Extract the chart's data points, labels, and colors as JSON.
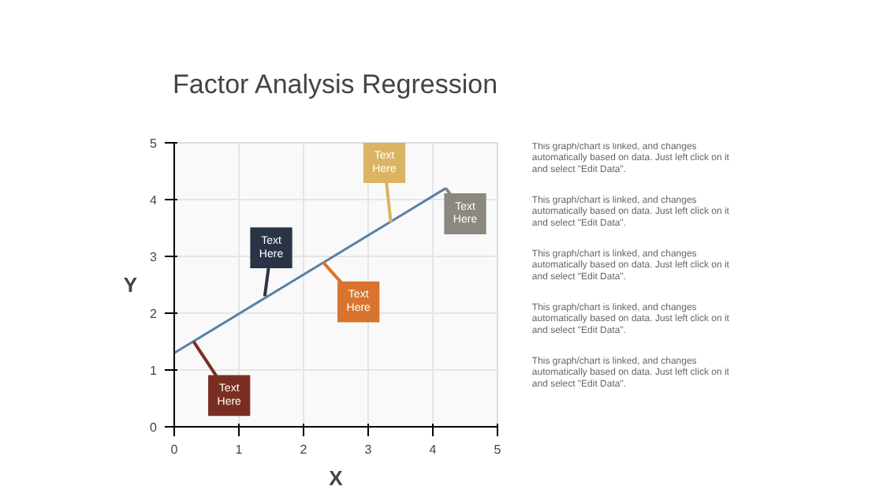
{
  "chart_data": {
    "type": "line",
    "title": "Factor Analysis Regression",
    "xlabel": "X",
    "ylabel": "Y",
    "x": [
      0,
      4.2
    ],
    "series": [
      {
        "color": "#5b7fa6",
        "values": [
          1.3,
          4.2
        ]
      }
    ],
    "xlim": [
      0,
      5
    ],
    "ylim": [
      0,
      5
    ],
    "xticks": [
      0,
      1,
      2,
      3,
      4,
      5
    ],
    "yticks": [
      0,
      1,
      2,
      3,
      4,
      5
    ],
    "grid": true,
    "marker": "none",
    "annotations": [
      {
        "text": "Text Here",
        "x": 0.3,
        "y": 1.5
      },
      {
        "text": "Text Here",
        "x": 1.4,
        "y": 2.3
      },
      {
        "text": "Text Here",
        "x": 2.3,
        "y": 2.9
      },
      {
        "text": "Text Here",
        "x": 3.35,
        "y": 3.6
      },
      {
        "text": "Text Here",
        "x": 4.2,
        "y": 4.2
      },
      "This graph/chart is linked, and changes automatically based on data. Just left click on it and select \"Edit Data\".",
      "This graph/chart is linked, and changes automatically based on data. Just left click on it and select \"Edit Data\".",
      "This graph/chart is linked, and changes automatically based on data. Just left click on it and select \"Edit Data\".",
      "This graph/chart is linked, and changes automatically based on data. Just left click on it and select \"Edit Data\".",
      "This graph/chart is linked, and changes automatically based on data. Just left click on it and select \"Edit Data\"."
    ]
  }
}
